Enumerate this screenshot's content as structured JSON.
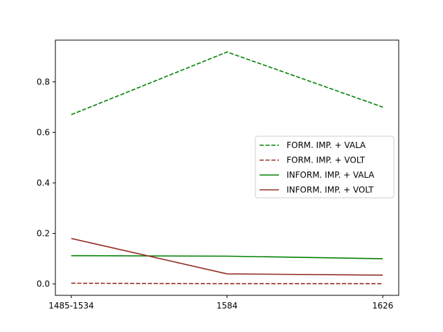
{
  "chart_data": {
    "type": "line",
    "title": "",
    "xlabel": "",
    "ylabel": "",
    "categories": [
      "1485-1534",
      "1584",
      "1626"
    ],
    "ylim": [
      -0.045,
      0.965
    ],
    "yticks": [
      0.0,
      0.2,
      0.4,
      0.6,
      0.8
    ],
    "ytick_labels": [
      "0.0",
      "0.2",
      "0.4",
      "0.6",
      "0.8"
    ],
    "grid": false,
    "legend_position": "center-right",
    "series": [
      {
        "name": "FORM. IMP. + VALA",
        "values": [
          0.67,
          0.918,
          0.7
        ],
        "color": "#008000",
        "dash": "dashed"
      },
      {
        "name": "FORM. IMP. + VOLT",
        "values": [
          0.003,
          0.001,
          0.001
        ],
        "color": "#922b21",
        "dash": "dashed"
      },
      {
        "name": "INFORM. IMP. + VALA",
        "values": [
          0.112,
          0.11,
          0.1
        ],
        "color": "#008000",
        "dash": "solid"
      },
      {
        "name": "INFORM. IMP. + VOLT",
        "values": [
          0.18,
          0.04,
          0.035
        ],
        "color": "#922b21",
        "dash": "solid"
      }
    ]
  }
}
